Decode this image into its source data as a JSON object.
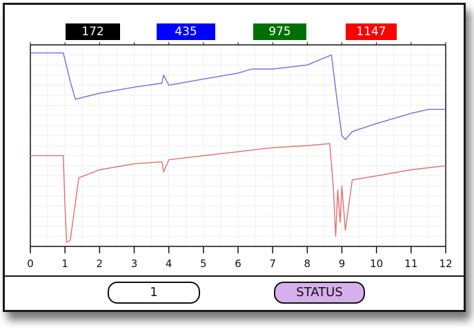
{
  "readouts": [
    {
      "value": "172",
      "color": "#000000"
    },
    {
      "value": "435",
      "color": "#0000ff"
    },
    {
      "value": "975",
      "color": "#007000"
    },
    {
      "value": "1147",
      "color": "#ff0000"
    }
  ],
  "buttons": {
    "page_label": "1",
    "status_label": "STATUS",
    "status_color": "#d6b0ec"
  },
  "chart_data": {
    "type": "line",
    "title": "",
    "xlabel": "",
    "ylabel": "",
    "xlim": [
      0,
      12
    ],
    "ylim": [
      0,
      100
    ],
    "x_ticks": [
      "0",
      "1",
      "2",
      "3",
      "4",
      "5",
      "6",
      "7",
      "8",
      "9",
      "10",
      "11",
      "12"
    ],
    "grid": true,
    "series": [
      {
        "color": "#7070e0",
        "x": [
          0,
          0.95,
          1.15,
          1.3,
          2,
          3,
          3.8,
          3.85,
          4,
          5,
          6,
          6.4,
          7,
          8,
          8.7,
          8.85,
          9.0,
          9.1,
          9.3,
          10,
          11,
          11.5,
          12
        ],
        "y": [
          96,
          96,
          82,
          73,
          76,
          79,
          81,
          85,
          80,
          83,
          86,
          88,
          88,
          90,
          95,
          74,
          55,
          53,
          57,
          61,
          66,
          68,
          68
        ]
      },
      {
        "color": "#e07070",
        "x": [
          0,
          0.95,
          1.0,
          1.05,
          1.15,
          1.25,
          1.4,
          2,
          3,
          3.8,
          3.85,
          4,
          5,
          6,
          7,
          8,
          8.65,
          8.75,
          8.82,
          8.88,
          8.95,
          9.0,
          9.1,
          9.3,
          10,
          11,
          11.5,
          12
        ],
        "y": [
          45,
          45,
          20,
          2,
          3,
          15,
          34,
          38,
          41,
          42,
          37,
          43,
          45,
          47,
          49,
          50,
          51,
          30,
          5,
          28,
          12,
          30,
          8,
          33,
          35,
          38,
          39,
          40
        ]
      }
    ]
  }
}
